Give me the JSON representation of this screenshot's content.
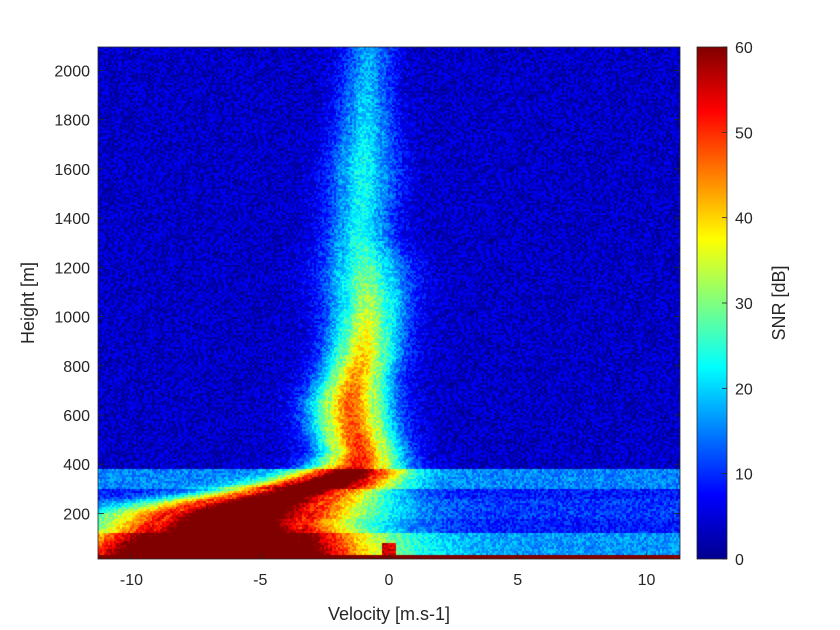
{
  "chart_data": {
    "type": "heatmap",
    "title": "",
    "xlabel": "Velocity [m.s-1]",
    "ylabel": "Height [m]",
    "xlim": [
      -11.3,
      11.3
    ],
    "ylim": [
      15,
      2095
    ],
    "xticks": [
      -10,
      -5,
      0,
      5,
      10
    ],
    "xtick_labels": [
      "-10",
      "-5",
      "0",
      "5",
      "10"
    ],
    "yticks": [
      200,
      400,
      600,
      800,
      1000,
      1200,
      1400,
      1600,
      1800,
      2000
    ],
    "ytick_labels": [
      "200",
      "400",
      "600",
      "800",
      "1000",
      "1200",
      "1400",
      "1600",
      "1800",
      "2000"
    ],
    "colorbar": {
      "label": "SNR [dB]",
      "colormap": "jet",
      "range": [
        0,
        60
      ],
      "ticks": [
        0,
        10,
        20,
        30,
        40,
        50,
        60
      ],
      "tick_labels": [
        "0",
        "10",
        "20",
        "30",
        "40",
        "50",
        "60"
      ]
    },
    "grid": false,
    "profile": {
      "description_units": "height [m] : center velocity [m.s-1], peak SNR [dB], half-width [m.s-1]",
      "heights": [
        2050,
        1900,
        1750,
        1620,
        1500,
        1400,
        1300,
        1220,
        1150,
        1050,
        950,
        850,
        750,
        650,
        550,
        450,
        400,
        360,
        320,
        280,
        240,
        200,
        160,
        120,
        80,
        50
      ],
      "velocity": [
        -0.8,
        -0.9,
        -0.9,
        -1.0,
        -1.0,
        -1.1,
        -1.1,
        -0.9,
        -0.9,
        -0.8,
        -0.9,
        -1.0,
        -1.3,
        -1.5,
        -1.4,
        -1.1,
        -1.2,
        -1.6,
        -2.5,
        -3.8,
        -5.0,
        -5.8,
        -6.2,
        -6.3,
        -6.5,
        -6.6
      ],
      "snr": [
        14,
        16,
        18,
        20,
        20,
        20,
        22,
        24,
        27,
        30,
        34,
        38,
        42,
        45,
        46,
        48,
        50,
        55,
        60,
        58,
        56,
        57,
        58,
        60,
        62,
        64
      ],
      "width": [
        0.55,
        0.6,
        0.65,
        0.75,
        0.75,
        0.7,
        0.75,
        0.9,
        0.9,
        0.85,
        0.8,
        0.8,
        0.8,
        0.9,
        0.9,
        0.9,
        1.0,
        1.2,
        1.4,
        1.9,
        2.4,
        2.7,
        2.8,
        2.9,
        3.0,
        3.1
      ]
    }
  }
}
